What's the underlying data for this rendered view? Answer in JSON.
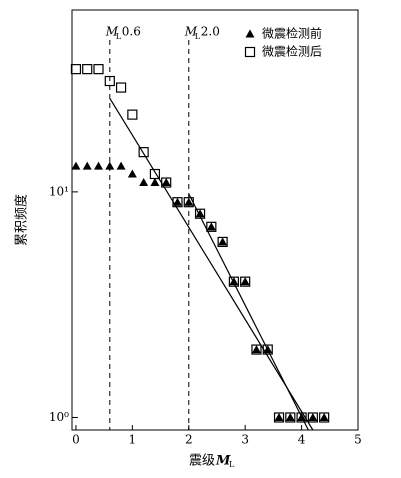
{
  "chart_data": {
    "type": "scatter",
    "xlabel": {
      "text": "震级",
      "symbol": "M",
      "subscript": "L"
    },
    "ylabel": "累积频度",
    "log_y": true,
    "xlim": [
      -0.07,
      5.0
    ],
    "ylim": [
      0.88,
      64
    ],
    "xticks": [
      0,
      1,
      2,
      3,
      4,
      5
    ],
    "yticks": [
      {
        "value": 1,
        "label": "10⁰"
      },
      {
        "value": 10,
        "label": "10¹"
      }
    ],
    "legend": "upper right",
    "series": [
      {
        "name": "微震检测后",
        "marker": "square",
        "color": "#000000",
        "x": [
          0,
          0.2,
          0.4,
          0.6,
          0.8,
          1.0,
          1.2,
          1.4,
          1.6,
          1.8,
          2.0,
          2.2,
          2.4,
          2.6,
          2.8,
          3.0,
          3.2,
          3.4,
          3.6,
          3.8,
          4.0,
          4.2,
          4.4
        ],
        "values": [
          35,
          35,
          35,
          31,
          29,
          22,
          15,
          12,
          11,
          9,
          9,
          8,
          7,
          6,
          4,
          4,
          2,
          2,
          1,
          1,
          1,
          1,
          1
        ]
      },
      {
        "name": "微震检测前",
        "marker": "triangle",
        "color": "#000000",
        "x": [
          0,
          0.2,
          0.4,
          0.6,
          0.8,
          1.0,
          1.2,
          1.4,
          1.6,
          1.8,
          2.0,
          2.2,
          2.4,
          2.6,
          2.8,
          3.0,
          3.2,
          3.4,
          3.6,
          3.8,
          4.0,
          4.2,
          4.4
        ],
        "values": [
          13,
          13,
          13,
          13,
          13,
          12,
          11,
          11,
          11,
          9,
          9,
          8,
          7,
          6,
          4,
          4,
          2,
          2,
          1,
          1,
          1,
          1,
          1
        ]
      }
    ],
    "fit_lines": [
      {
        "x": [
          0.6,
          4.2
        ],
        "values": [
          26,
          0.88
        ]
      },
      {
        "x": [
          2.0,
          4.12
        ],
        "values": [
          9.8,
          0.88
        ]
      }
    ],
    "annotations": [
      {
        "x": 0.6,
        "symbol": "M",
        "subscript": "L",
        "text": "0.6"
      },
      {
        "x": 2.0,
        "symbol": "M",
        "subscript": "L",
        "text": "2.0"
      }
    ]
  }
}
